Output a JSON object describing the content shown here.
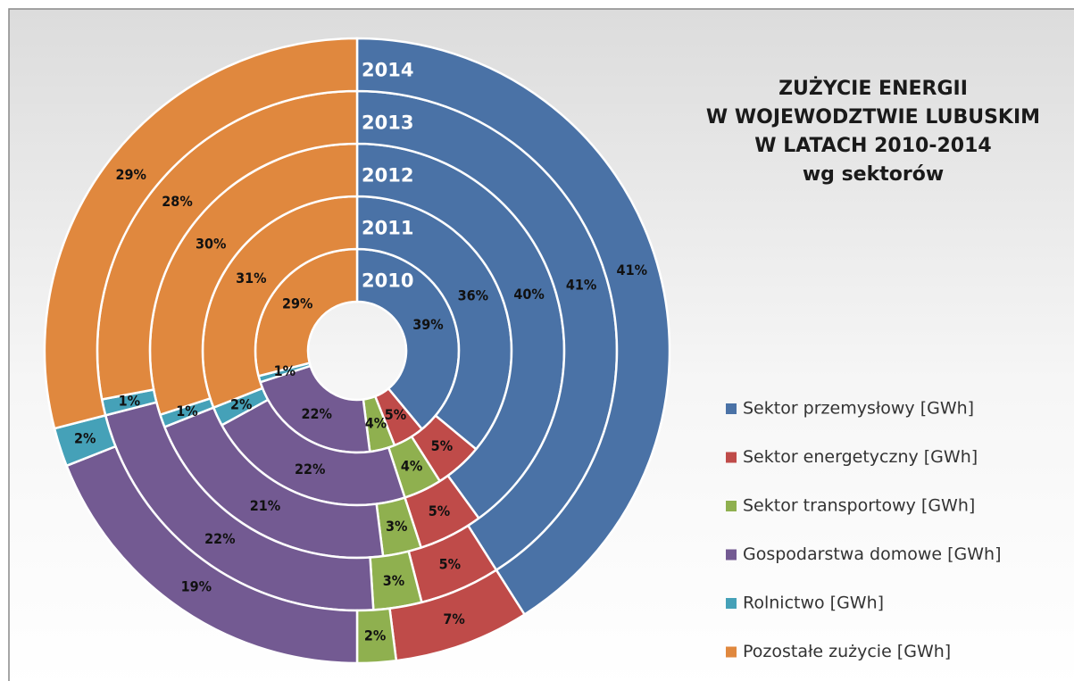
{
  "chart_data": {
    "type": "doughnut",
    "title": [
      "ZUŻYCIE ENERGII",
      "W WOJEWODZTWIE LUBUSKIM",
      "W LATACH 2010-2014",
      "wg sektorów"
    ],
    "categories": [
      "Sektor przemysłowy [GWh]",
      "Sektor energetyczny [GWh]",
      "Sektor transportowy [GWh]",
      "Gospodarstwa domowe [GWh]",
      "Rolnictwo [GWh]",
      "Pozostałe zużycie [GWh]"
    ],
    "colors": [
      "#4a72a6",
      "#bf4b49",
      "#8fb04f",
      "#735a92",
      "#45a1b8",
      "#e0883e"
    ],
    "legend": "right",
    "series": [
      {
        "name": "2010",
        "values": [
          39,
          5,
          4,
          22,
          1,
          29
        ],
        "value_labels": [
          "39%",
          "5%",
          "4%",
          "22%",
          "1%",
          "29%"
        ]
      },
      {
        "name": "2011",
        "values": [
          36,
          5,
          4,
          22,
          2,
          31
        ],
        "value_labels": [
          "36%",
          "5%",
          "4%",
          "22%",
          "2%",
          "31%"
        ]
      },
      {
        "name": "2012",
        "values": [
          40,
          5,
          3,
          21,
          1,
          30
        ],
        "value_labels": [
          "40%",
          "5%",
          "3%",
          "21%",
          "1%",
          "30%"
        ]
      },
      {
        "name": "2013",
        "values": [
          41,
          5,
          3,
          22,
          1,
          28
        ],
        "value_labels": [
          "41%",
          "5%",
          "3%",
          "22%",
          "1%",
          "28%"
        ]
      },
      {
        "name": "2014",
        "values": [
          41,
          7,
          2,
          19,
          2,
          29
        ],
        "value_labels": [
          "41%",
          "7%",
          "2%",
          "19%",
          "2%",
          "29%"
        ]
      }
    ]
  }
}
